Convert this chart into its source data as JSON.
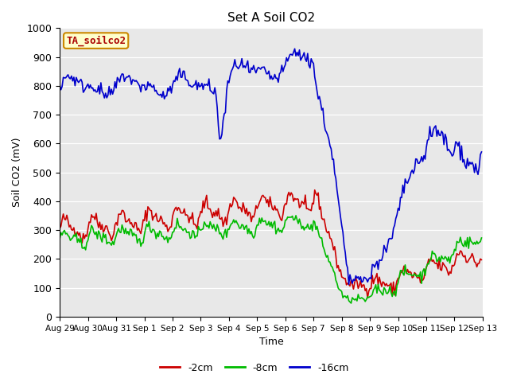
{
  "title": "Set A Soil CO2",
  "ylabel": "Soil CO2 (mV)",
  "xlabel": "Time",
  "legend_label": "TA_soilco2",
  "ylim": [
    0,
    1000
  ],
  "bg_color": "#e8e8e8",
  "fig_color": "#ffffff",
  "series": {
    "red": {
      "label": "-2cm",
      "color": "#cc0000",
      "linewidth": 1.2
    },
    "green": {
      "label": "-8cm",
      "color": "#00bb00",
      "linewidth": 1.2
    },
    "blue": {
      "label": "-16cm",
      "color": "#0000cc",
      "linewidth": 1.2
    }
  },
  "xtick_labels": [
    "Aug 29",
    "Aug 30",
    "Aug 31",
    "Sep 1",
    "Sep 2",
    "Sep 3",
    "Sep 4",
    "Sep 5",
    "Sep 6",
    "Sep 7",
    "Sep 8",
    "Sep 9",
    "Sep 10",
    "Sep 11",
    "Sep 12",
    "Sep 13"
  ],
  "xtick_positions": [
    0,
    24,
    48,
    72,
    96,
    120,
    144,
    168,
    192,
    216,
    240,
    264,
    288,
    312,
    336,
    360
  ],
  "ytick_labels": [
    "0",
    "100",
    "200",
    "300",
    "400",
    "500",
    "600",
    "700",
    "800",
    "900",
    "1000"
  ],
  "ytick_positions": [
    0,
    100,
    200,
    300,
    400,
    500,
    600,
    700,
    800,
    900,
    1000
  ]
}
